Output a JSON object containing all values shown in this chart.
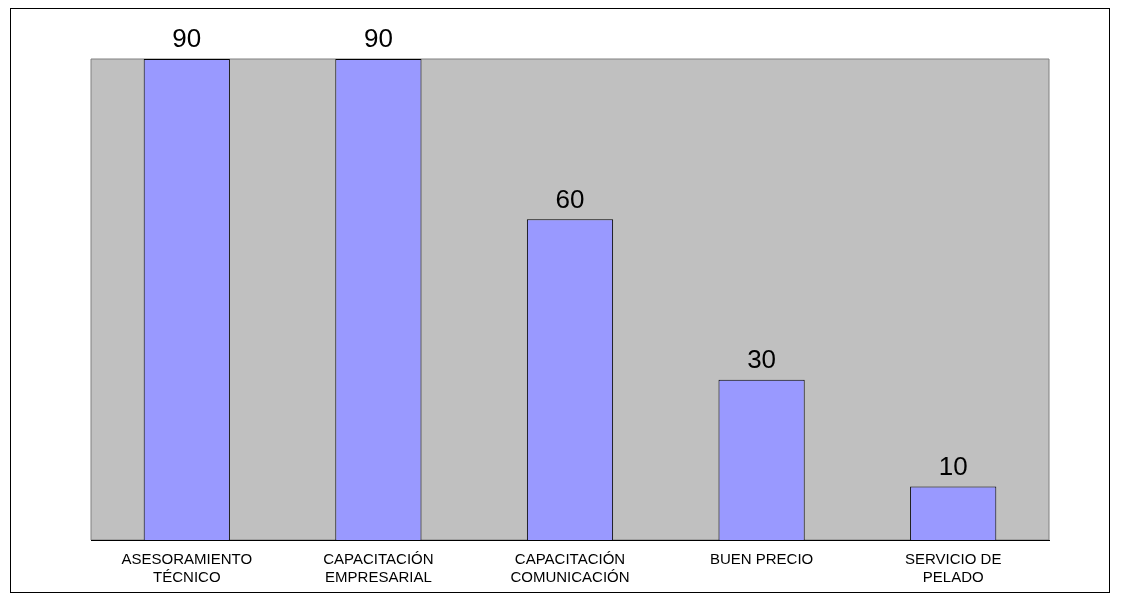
{
  "chart_data": {
    "type": "bar",
    "categories": [
      "ASESORAMIENTO\nTÉCNICO",
      "CAPACITACIÓN\nEMPRESARIAL",
      "CAPACITACIÓN\nCOMUNICACIÓN",
      "BUEN PRECIO",
      "SERVICIO DE\nPELADO"
    ],
    "values": [
      90,
      90,
      60,
      30,
      10
    ],
    "color": "#9999ff",
    "data_labels": true,
    "grid": false,
    "legend": false
  }
}
